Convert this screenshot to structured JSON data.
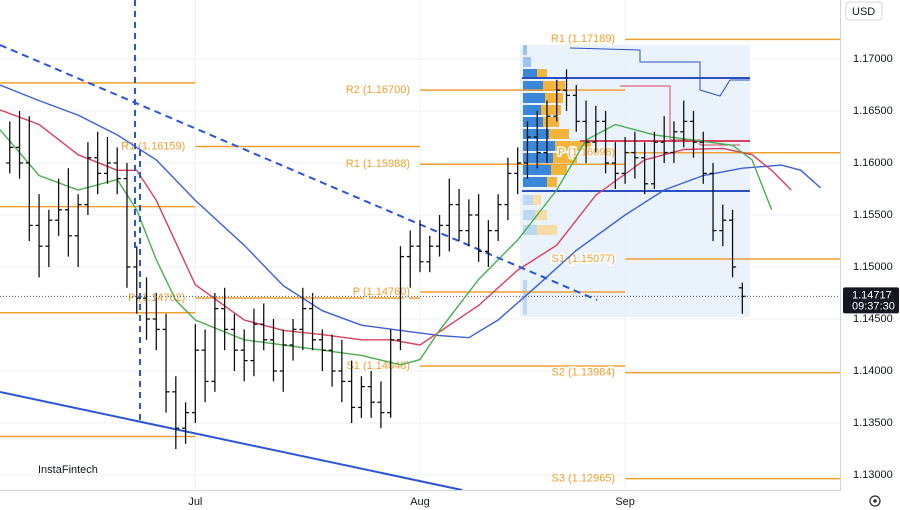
{
  "chart_data": {
    "type": "ohlc",
    "currency": "USD",
    "brand": "InstaFintech",
    "xlim": [
      0,
      86
    ],
    "xticks": [
      {
        "value": 20,
        "label": "Jul"
      },
      {
        "value": 43,
        "label": "Aug"
      },
      {
        "value": 64,
        "label": "Sep"
      }
    ],
    "ylim": [
      1.12856,
      1.17567
    ],
    "yticks": [
      {
        "value": 1.17,
        "label": "1.17000"
      },
      {
        "value": 1.165,
        "label": "1.16500"
      },
      {
        "value": 1.16,
        "label": "1.16000"
      },
      {
        "value": 1.155,
        "label": "1.15500"
      },
      {
        "value": 1.15,
        "label": "1.15000"
      },
      {
        "value": 1.145,
        "label": "1.14500"
      },
      {
        "value": 1.14,
        "label": "1.14000"
      },
      {
        "value": 1.135,
        "label": "1.13500"
      },
      {
        "value": 1.13,
        "label": "1.13000"
      }
    ],
    "grid": true,
    "bar_color": "#111111",
    "x": [
      1,
      2,
      3,
      4,
      5,
      6,
      7,
      8,
      9,
      10,
      11,
      12,
      13,
      14,
      15,
      16,
      17,
      18,
      19,
      20,
      21,
      22,
      23,
      24,
      25,
      26,
      27,
      28,
      29,
      30,
      31,
      32,
      33,
      34,
      35,
      36,
      37,
      38,
      39,
      40,
      41,
      42,
      43,
      44,
      45,
      46,
      47,
      48,
      49,
      50,
      51,
      52,
      53,
      54,
      55,
      56,
      57,
      58,
      59,
      60,
      61,
      62,
      63,
      64,
      65,
      66,
      67,
      68,
      69,
      70,
      71,
      72,
      73,
      74,
      75,
      76
    ],
    "open": [
      1.16,
      1.1615,
      1.16,
      1.154,
      1.152,
      1.1545,
      1.1555,
      1.153,
      1.156,
      1.1605,
      1.159,
      1.16,
      1.1585,
      1.15,
      1.147,
      1.145,
      1.144,
      1.138,
      1.1345,
      1.136,
      1.142,
      1.139,
      1.146,
      1.144,
      1.142,
      1.141,
      1.1445,
      1.143,
      1.14,
      1.1425,
      1.144,
      1.146,
      1.143,
      1.142,
      1.14,
      1.139,
      1.1365,
      1.1385,
      1.137,
      1.136,
      1.143,
      1.151,
      1.152,
      1.1505,
      1.152,
      1.154,
      1.156,
      1.1535,
      1.155,
      1.1515,
      1.1535,
      1.156,
      1.159,
      1.16,
      1.1625,
      1.161,
      1.1645,
      1.167,
      1.1665,
      1.164,
      1.162,
      1.164,
      1.16,
      1.159,
      1.161,
      1.1605,
      1.158,
      1.162,
      1.161,
      1.163,
      1.164,
      1.162,
      1.159,
      1.1535,
      1.1545,
      1.148
    ],
    "high": [
      1.164,
      1.165,
      1.1645,
      1.157,
      1.1555,
      1.1585,
      1.1595,
      1.157,
      1.162,
      1.163,
      1.1625,
      1.1615,
      1.16,
      1.152,
      1.149,
      1.1475,
      1.1455,
      1.1395,
      1.137,
      1.1445,
      1.144,
      1.1475,
      1.148,
      1.1455,
      1.144,
      1.146,
      1.1465,
      1.145,
      1.144,
      1.145,
      1.148,
      1.1475,
      1.144,
      1.1435,
      1.143,
      1.141,
      1.1395,
      1.14,
      1.139,
      1.144,
      1.152,
      1.1535,
      1.1545,
      1.153,
      1.155,
      1.1585,
      1.1575,
      1.1565,
      1.157,
      1.1545,
      1.157,
      1.1605,
      1.1615,
      1.164,
      1.165,
      1.166,
      1.168,
      1.169,
      1.1675,
      1.166,
      1.1655,
      1.165,
      1.162,
      1.1625,
      1.163,
      1.162,
      1.163,
      1.1645,
      1.164,
      1.166,
      1.165,
      1.163,
      1.16,
      1.156,
      1.1555,
      1.1485
    ],
    "low": [
      1.159,
      1.1585,
      1.1525,
      1.149,
      1.15,
      1.153,
      1.151,
      1.15,
      1.155,
      1.157,
      1.158,
      1.157,
      1.148,
      1.1455,
      1.143,
      1.142,
      1.136,
      1.1325,
      1.133,
      1.135,
      1.137,
      1.138,
      1.142,
      1.14,
      1.139,
      1.1395,
      1.142,
      1.139,
      1.138,
      1.141,
      1.142,
      1.142,
      1.14,
      1.1385,
      1.137,
      1.135,
      1.1355,
      1.1355,
      1.1345,
      1.1355,
      1.142,
      1.148,
      1.1495,
      1.1495,
      1.151,
      1.1515,
      1.1525,
      1.152,
      1.1505,
      1.15,
      1.1525,
      1.1545,
      1.157,
      1.1585,
      1.1595,
      1.16,
      1.164,
      1.165,
      1.163,
      1.16,
      1.161,
      1.159,
      1.1575,
      1.158,
      1.1585,
      1.157,
      1.1575,
      1.16,
      1.16,
      1.1615,
      1.1605,
      1.158,
      1.1525,
      1.152,
      1.149,
      1.1455
    ],
    "close": [
      1.1615,
      1.16,
      1.154,
      1.152,
      1.1545,
      1.1555,
      1.153,
      1.156,
      1.1605,
      1.159,
      1.16,
      1.1585,
      1.15,
      1.147,
      1.145,
      1.144,
      1.138,
      1.1345,
      1.136,
      1.142,
      1.139,
      1.146,
      1.144,
      1.142,
      1.141,
      1.1445,
      1.143,
      1.14,
      1.1425,
      1.144,
      1.146,
      1.143,
      1.142,
      1.14,
      1.139,
      1.1365,
      1.1385,
      1.137,
      1.136,
      1.143,
      1.151,
      1.152,
      1.1505,
      1.152,
      1.154,
      1.156,
      1.1535,
      1.155,
      1.1515,
      1.1535,
      1.156,
      1.159,
      1.16,
      1.1625,
      1.161,
      1.1645,
      1.167,
      1.1665,
      1.164,
      1.162,
      1.164,
      1.16,
      1.159,
      1.161,
      1.1605,
      1.158,
      1.162,
      1.161,
      1.163,
      1.164,
      1.162,
      1.159,
      1.1535,
      1.1545,
      1.15,
      1.14717
    ],
    "lines": [
      {
        "color": "#3d5fd6",
        "x": [
          0,
          4,
          8,
          12,
          16,
          20,
          25,
          29,
          33,
          37,
          41,
          45,
          48,
          51,
          55,
          59,
          64,
          68,
          72,
          76,
          80,
          82,
          84
        ],
        "values": [
          1.1675,
          1.166,
          1.1646,
          1.1627,
          1.1603,
          1.1564,
          1.1521,
          1.1482,
          1.1458,
          1.1444,
          1.1439,
          1.1434,
          1.1432,
          1.1449,
          1.1482,
          1.1516,
          1.155,
          1.1574,
          1.1588,
          1.1595,
          1.1598,
          1.1593,
          1.1576
        ]
      },
      {
        "color": "#d9405e",
        "x": [
          0,
          4,
          8,
          12,
          14,
          16,
          20,
          25,
          29,
          33,
          37,
          40,
          43,
          46,
          49,
          53,
          57,
          61,
          66,
          70,
          74,
          77,
          79,
          81
        ],
        "values": [
          1.1651,
          1.1637,
          1.1608,
          1.1593,
          1.1593,
          1.1564,
          1.1483,
          1.1449,
          1.1439,
          1.1435,
          1.143,
          1.143,
          1.1425,
          1.1444,
          1.1463,
          1.1497,
          1.1521,
          1.1569,
          1.1603,
          1.1613,
          1.1614,
          1.1608,
          1.1593,
          1.1574
        ]
      },
      {
        "color": "#4caf50",
        "x": [
          0,
          4,
          8,
          12,
          14,
          16,
          18,
          20,
          25,
          29,
          33,
          37,
          41,
          43,
          45,
          49,
          53,
          57,
          60,
          63,
          67,
          71,
          75,
          77,
          79
        ],
        "values": [
          1.1632,
          1.1588,
          1.1574,
          1.1584,
          1.1555,
          1.1507,
          1.1468,
          1.1449,
          1.143,
          1.1425,
          1.142,
          1.1415,
          1.1406,
          1.1411,
          1.1439,
          1.1488,
          1.1526,
          1.1574,
          1.1622,
          1.1637,
          1.1627,
          1.1622,
          1.1617,
          1.1603,
          1.1555
        ]
      }
    ],
    "pivot_color": "#f0a030",
    "pivots": [
      {
        "value": 1.1677,
        "x": [
          0,
          20
        ]
      },
      {
        "value": 1.1558,
        "x": [
          0,
          20
        ]
      },
      {
        "value": 1.1456,
        "x": [
          0,
          20
        ]
      },
      {
        "value": 1.1337,
        "x": [
          0,
          20
        ]
      },
      {
        "label": "R1 (1.16159)",
        "value": 1.16159,
        "x": [
          20,
          43
        ]
      },
      {
        "label": "P (1.14702)",
        "value": 1.14702,
        "x": [
          20,
          43
        ]
      },
      {
        "label": "R2 (1.16700)",
        "value": 1.167,
        "x": [
          43,
          64
        ]
      },
      {
        "label": "R1 (1.15988)",
        "value": 1.15988,
        "x": [
          43,
          64
        ]
      },
      {
        "label": "P (1.14760)",
        "value": 1.1476,
        "x": [
          43,
          64
        ]
      },
      {
        "label": "S1 (1.14048)",
        "value": 1.14048,
        "x": [
          43,
          64
        ]
      },
      {
        "label": "R1 (1.17189)",
        "value": 1.17189,
        "x": [
          64,
          86
        ]
      },
      {
        "label": "P (1.16098)",
        "value": 1.16098,
        "x": [
          64,
          86
        ]
      },
      {
        "label": "S1 (1.15077)",
        "value": 1.15077,
        "x": [
          64,
          86
        ]
      },
      {
        "label": "S2 (1.13984)",
        "value": 1.13984,
        "x": [
          64,
          86
        ]
      },
      {
        "label": "S3 (1.12965)",
        "value": 1.12965,
        "x": [
          64,
          86
        ]
      }
    ],
    "last_price": {
      "value": 1.14717,
      "label": "1.14717"
    },
    "last_time": "09:37:30"
  }
}
